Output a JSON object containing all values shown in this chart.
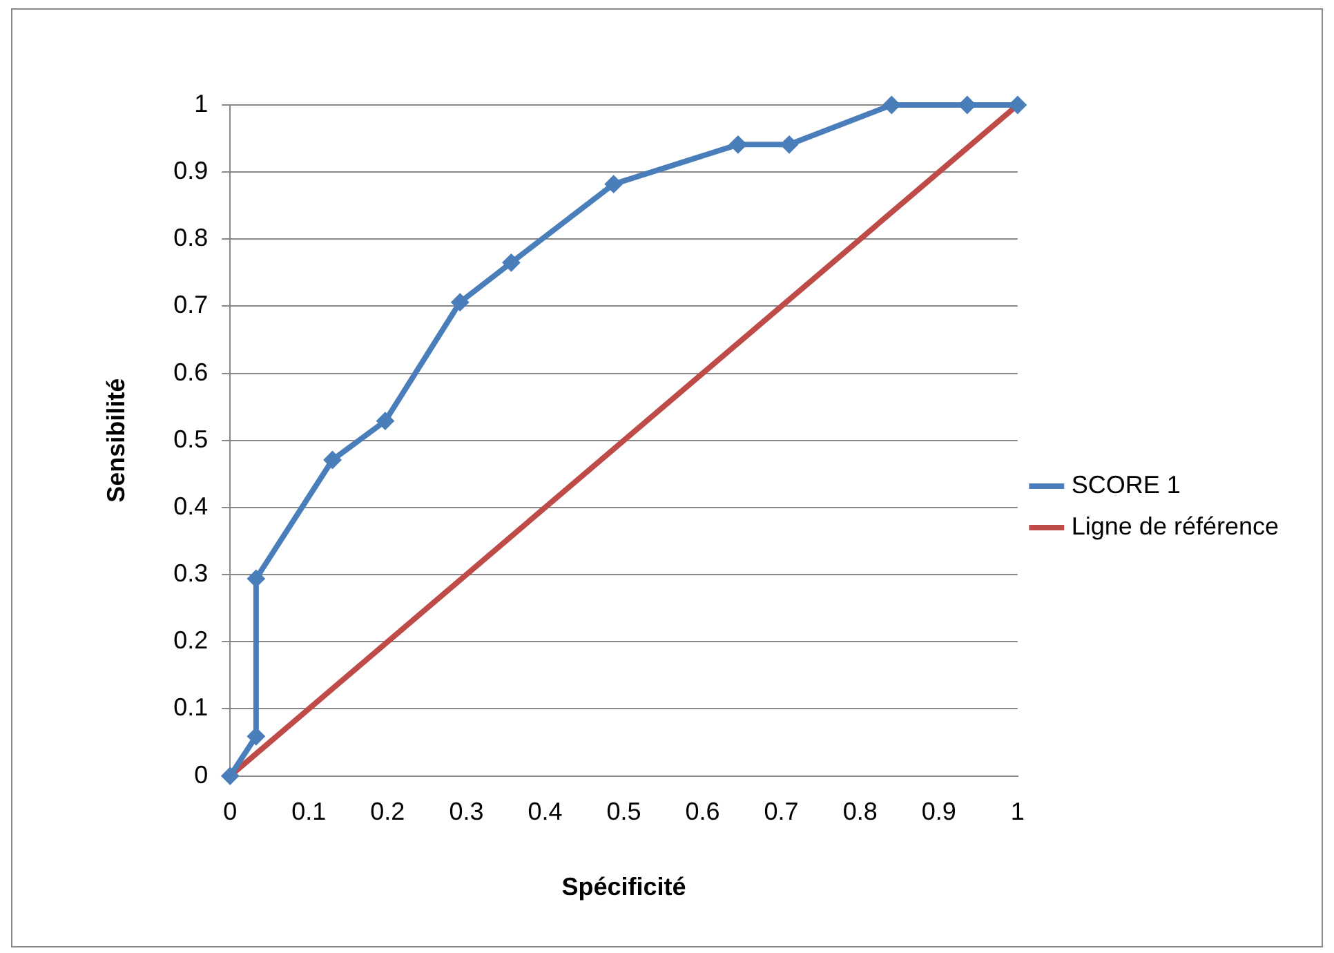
{
  "chart_data": {
    "type": "line",
    "xlabel": "Spécificité",
    "ylabel": "Sensibilité",
    "xlim": [
      0,
      1
    ],
    "xticks": [
      0,
      0.1,
      0.2,
      0.3,
      0.4,
      0.5,
      0.6,
      0.7,
      0.8,
      0.9,
      1
    ],
    "ylim": [
      0,
      1
    ],
    "yticks": [
      0,
      0.1,
      0.2,
      0.3,
      0.4,
      0.5,
      0.6,
      0.7,
      0.8,
      0.9,
      1
    ],
    "grid": "y",
    "legend": "right",
    "line_style": "solid",
    "series": [
      {
        "name": "SCORE 1",
        "color": "#4a7ebb",
        "marker": "diamond",
        "x": [
          0,
          0.033,
          0.033,
          0.13,
          0.197,
          0.292,
          0.357,
          0.487,
          0.645,
          0.71,
          0.84,
          0.936,
          1
        ],
        "values": [
          0,
          0.059,
          0.294,
          0.471,
          0.529,
          0.706,
          0.765,
          0.882,
          0.941,
          0.941,
          1,
          1,
          1
        ]
      },
      {
        "name": "Ligne de référence",
        "color": "#be4b48",
        "marker": "none",
        "x": [
          0,
          1
        ],
        "values": [
          0,
          1
        ]
      }
    ]
  }
}
